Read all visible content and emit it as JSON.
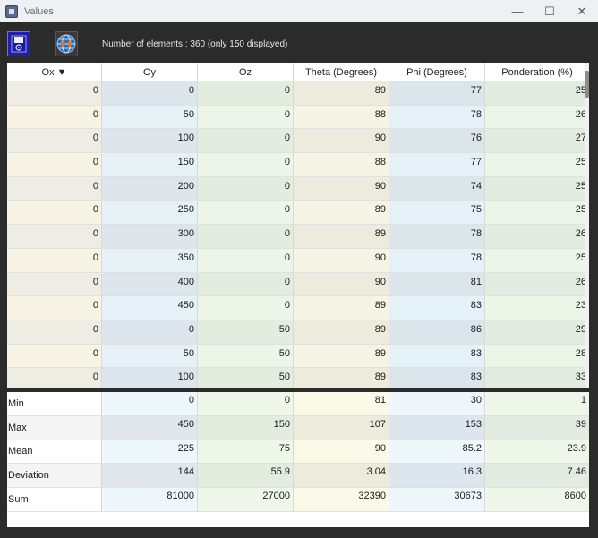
{
  "window": {
    "title": "Values",
    "minimize_glyph": "—",
    "maximize_glyph": "☐",
    "close_glyph": "✕"
  },
  "toolbar": {
    "save_icon": "save-icon",
    "globe_icon": "globe-icon",
    "count_text": "Number of elements : 360 (only 150 displayed)"
  },
  "table": {
    "columns": [
      "Ox ▼",
      "Oy",
      "Oz",
      "Theta (Degrees)",
      "Phi (Degrees)",
      "Ponderation (%)"
    ],
    "rows": [
      [
        "0",
        "0",
        "0",
        "89",
        "77",
        "25"
      ],
      [
        "0",
        "50",
        "0",
        "88",
        "78",
        "26"
      ],
      [
        "0",
        "100",
        "0",
        "90",
        "76",
        "27"
      ],
      [
        "0",
        "150",
        "0",
        "88",
        "77",
        "25"
      ],
      [
        "0",
        "200",
        "0",
        "90",
        "74",
        "25"
      ],
      [
        "0",
        "250",
        "0",
        "89",
        "75",
        "25"
      ],
      [
        "0",
        "300",
        "0",
        "89",
        "78",
        "26"
      ],
      [
        "0",
        "350",
        "0",
        "90",
        "78",
        "25"
      ],
      [
        "0",
        "400",
        "0",
        "90",
        "81",
        "26"
      ],
      [
        "0",
        "450",
        "0",
        "89",
        "83",
        "23"
      ],
      [
        "0",
        "0",
        "50",
        "89",
        "86",
        "29"
      ],
      [
        "0",
        "50",
        "50",
        "89",
        "83",
        "28"
      ],
      [
        "0",
        "100",
        "50",
        "89",
        "83",
        "33"
      ]
    ]
  },
  "stats": {
    "rows": [
      {
        "label": "Min",
        "values": [
          "0",
          "0",
          "81",
          "30",
          "1"
        ]
      },
      {
        "label": "Max",
        "values": [
          "450",
          "150",
          "107",
          "153",
          "39"
        ]
      },
      {
        "label": "Mean",
        "values": [
          "225",
          "75",
          "90",
          "85.2",
          "23.9"
        ]
      },
      {
        "label": "Deviation",
        "values": [
          "144",
          "55.9",
          "3.04",
          "16.3",
          "7.46"
        ]
      },
      {
        "label": "Sum",
        "values": [
          "81000",
          "27000",
          "32390",
          "30673",
          "8600"
        ]
      }
    ]
  },
  "colors": {
    "col_ox": [
      "#efede3",
      "#f7f4e4"
    ],
    "col_oy": [
      "#dde6ec",
      "#e6f1f7"
    ],
    "col_oz": [
      "#e2ecdf",
      "#ecf6e8"
    ],
    "col_theta": [
      "#ecebdc",
      "#f6f4e4"
    ],
    "col_phi": [
      "#dbe6ec",
      "#e5f1f8"
    ],
    "col_pond": [
      "#e2ece0",
      "#ebf6e9"
    ],
    "stat_oy": [
      "#eef7fb",
      "#dfe7ec"
    ],
    "stat_oz": [
      "#eef7ea",
      "#e4ece0"
    ],
    "stat_theta": [
      "#fbf9e8",
      "#edebdc"
    ],
    "stat_phi": [
      "#eef7fb",
      "#dde6ec"
    ],
    "stat_pond": [
      "#eef7ea",
      "#e2ece0"
    ]
  }
}
